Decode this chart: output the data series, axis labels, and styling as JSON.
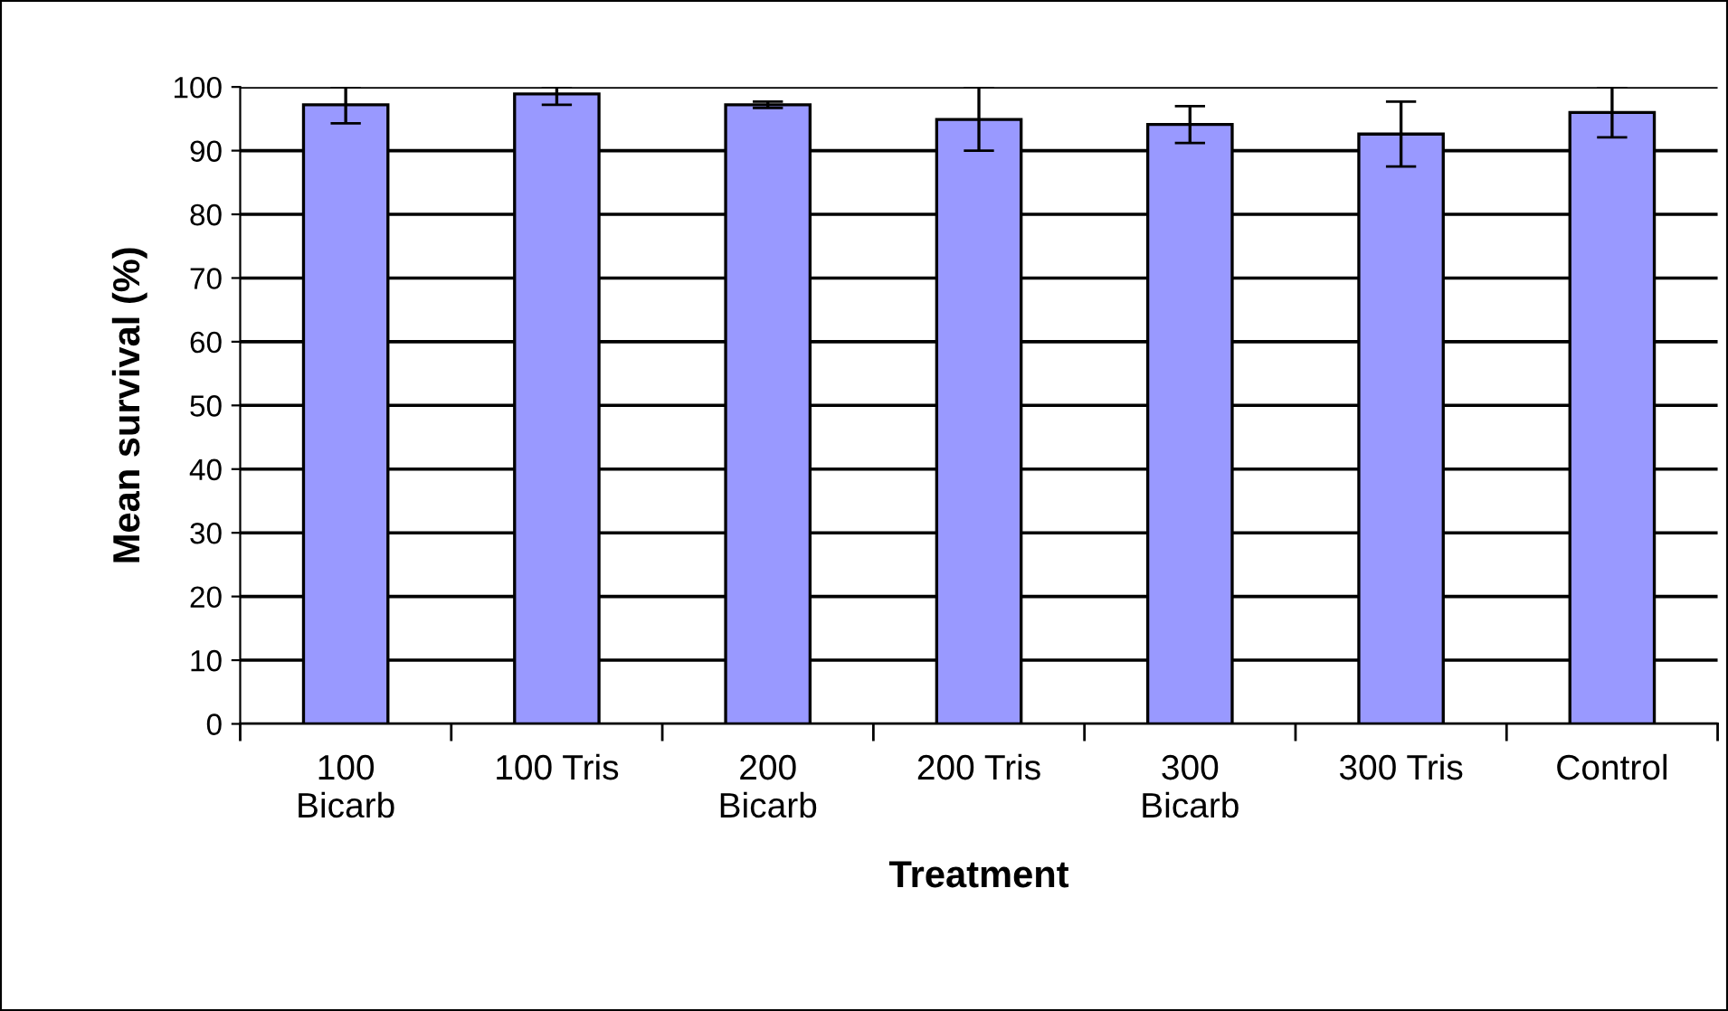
{
  "chart_data": {
    "type": "bar",
    "xlabel": "Treatment",
    "ylabel": "Mean survival (%)",
    "categories": [
      "100\nBicarb",
      "100 Tris",
      "200\nBicarb",
      "200 Tris",
      "300\nBicarb",
      "300 Tris",
      "Control"
    ],
    "values": [
      97.2,
      98.9,
      97.2,
      94.9,
      94.1,
      92.6,
      96.0
    ],
    "errors": [
      [
        94.3,
        100
      ],
      [
        97.2,
        100
      ],
      [
        96.7,
        97.7
      ],
      [
        90.0,
        100
      ],
      [
        91.2,
        97.0
      ],
      [
        87.5,
        97.7
      ],
      [
        92.1,
        100
      ]
    ],
    "color": "#9999ff",
    "ylim": [
      0,
      100
    ],
    "yticks": [
      0,
      10,
      20,
      30,
      40,
      50,
      60,
      70,
      80,
      90,
      100
    ],
    "grid": "y",
    "legend": false
  }
}
